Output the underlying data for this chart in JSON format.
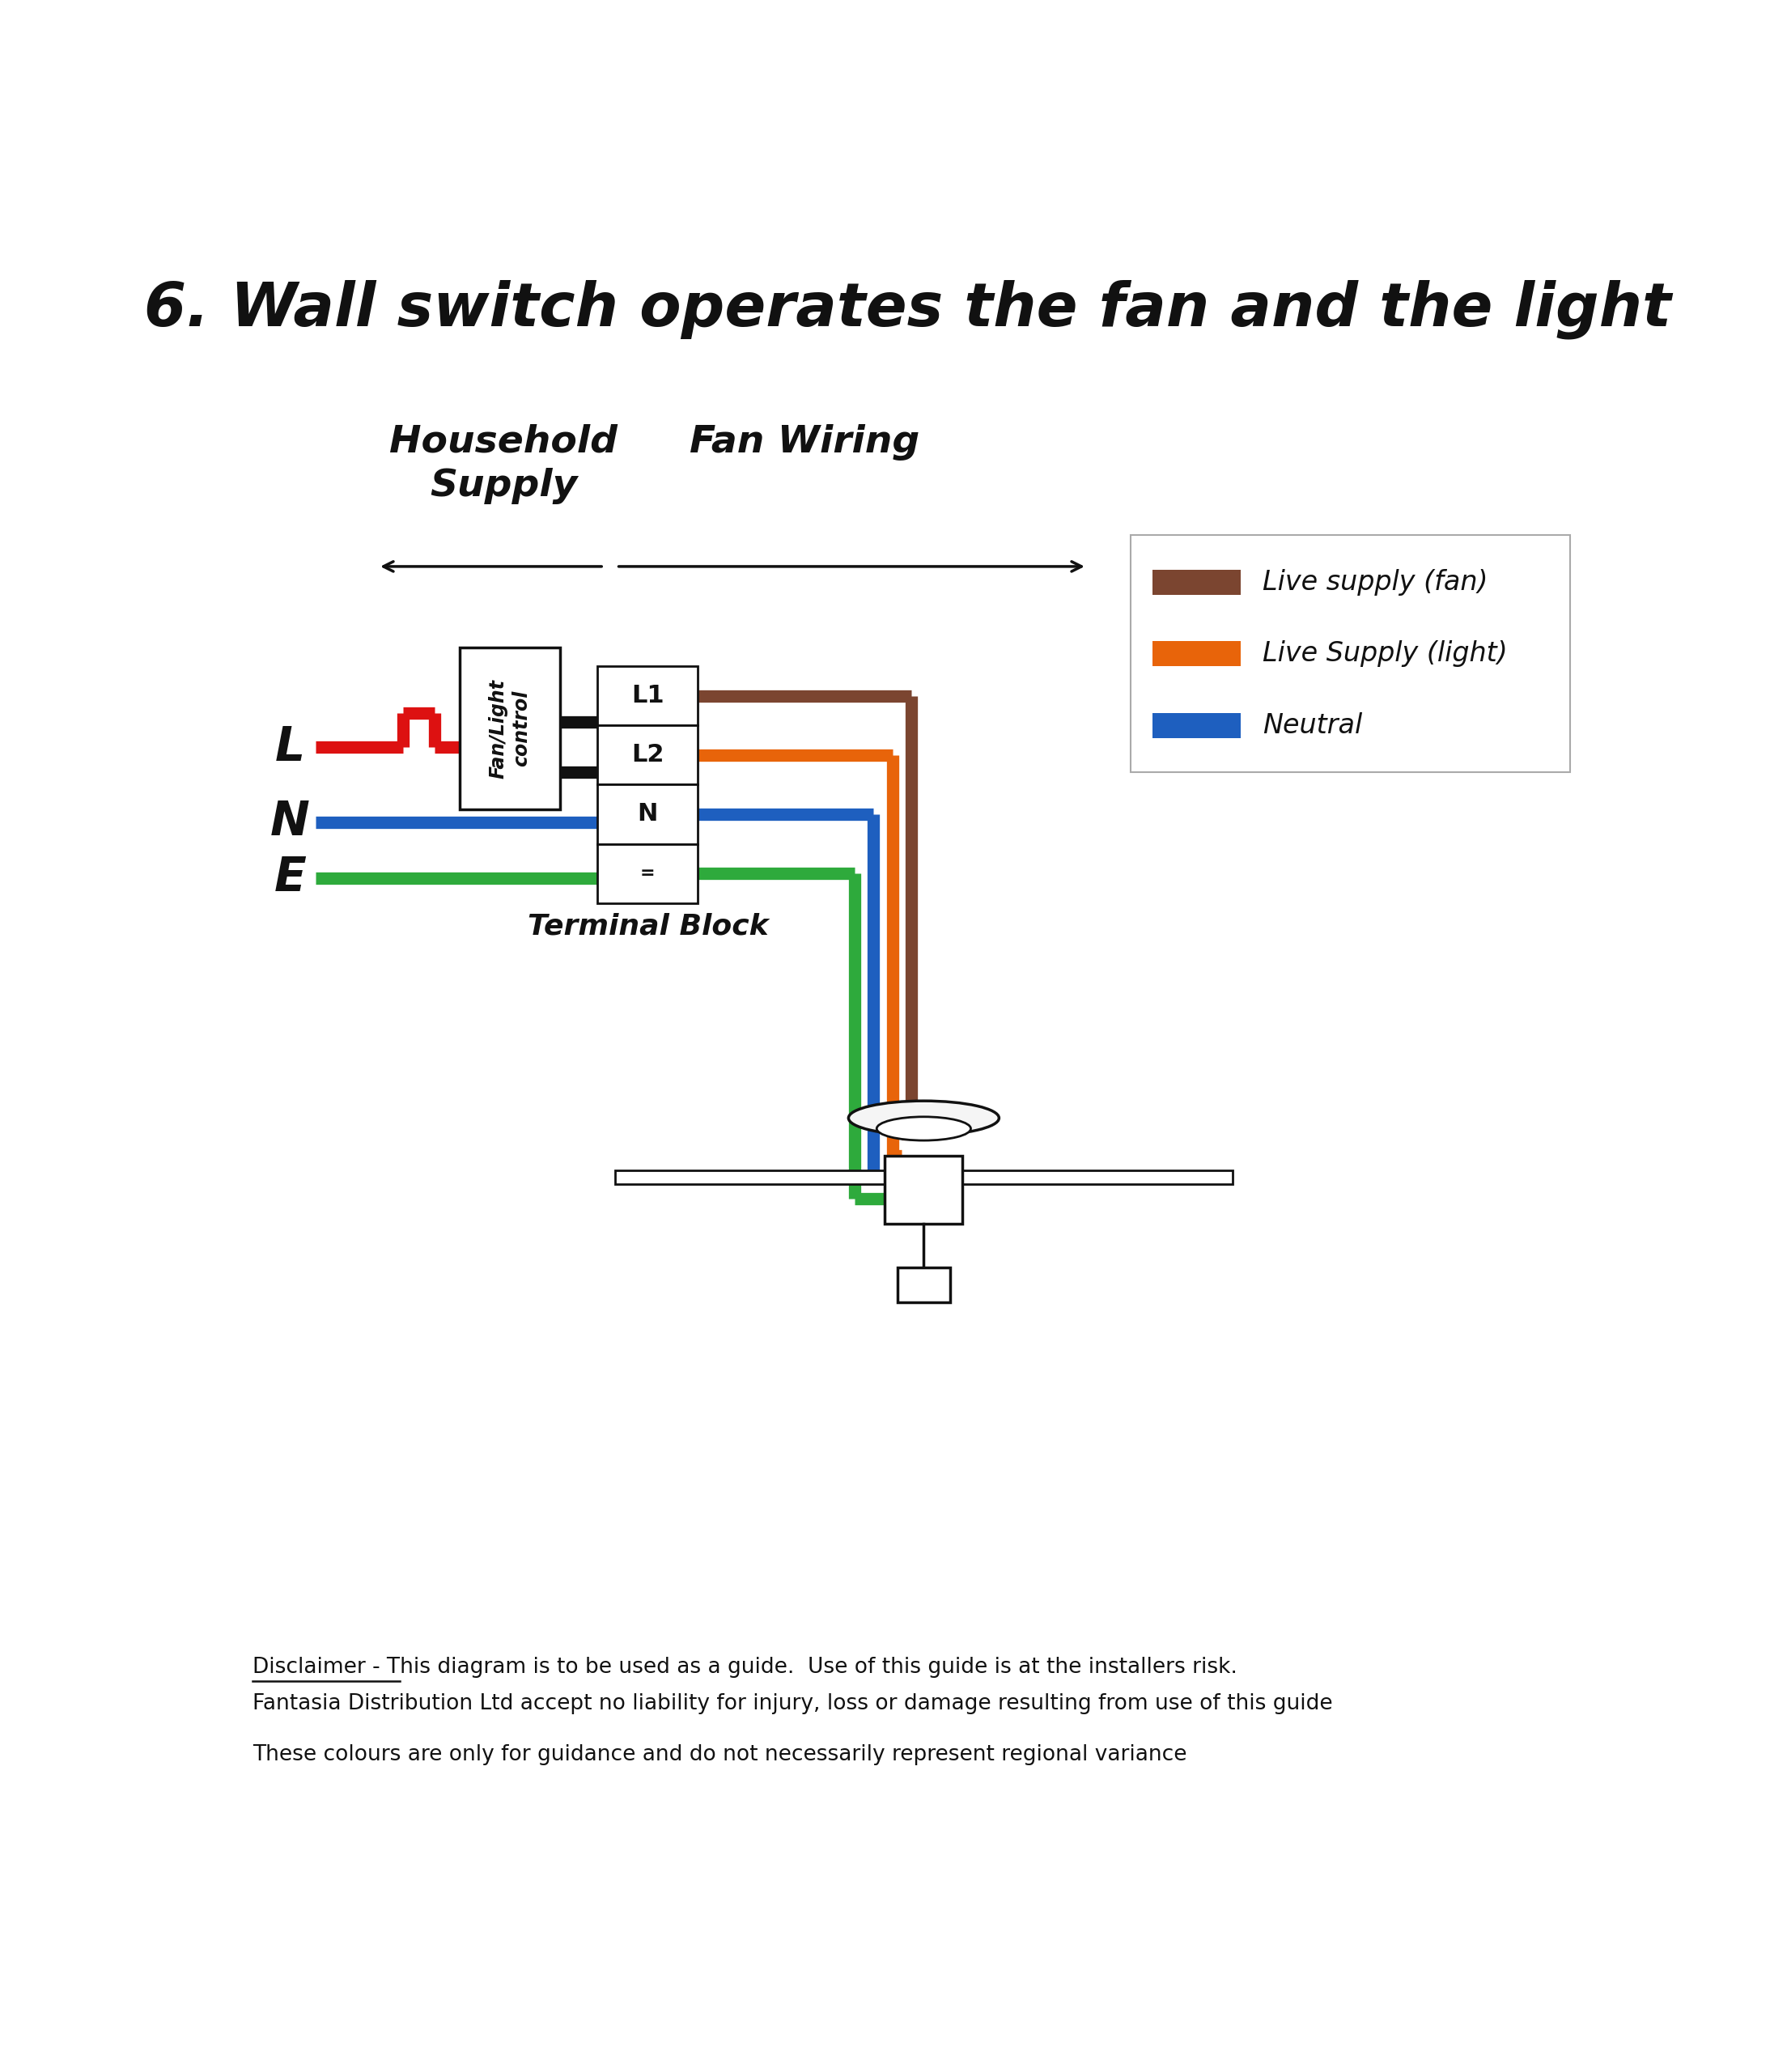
{
  "title": "6. Wall switch operates the fan and the light",
  "title_fontsize": 54,
  "bg_color": "#ffffff",
  "wire_colors": {
    "live_fan": "#7B4530",
    "live_light": "#E8640A",
    "neutral": "#1E5FBF",
    "earth": "#2EAA3C",
    "black": "#111111",
    "red": "#DD1111"
  },
  "wire_lw": 11,
  "labels": {
    "L": "L",
    "N": "N",
    "E": "E",
    "household_line1": "Household",
    "household_line2": "Supply",
    "fan_wiring": "Fan Wiring",
    "terminal": "Terminal Block",
    "fan_control_line1": "Fan/Light",
    "fan_control_line2": "control"
  },
  "legend_items": [
    {
      "label": "Live supply (fan)",
      "color": "#7B4530"
    },
    {
      "label": "Live Supply (light)",
      "color": "#E8640A"
    },
    {
      "label": "Neutral",
      "color": "#1E5FBF"
    }
  ],
  "disclaimer_pre": "Disclaimer",
  "disclaimer_post": " - This diagram is to be used as a guide.  Use of this guide is at the installers risk.",
  "disclaimer_line2": "Fantasia Distribution Ltd accept no liability for injury, loss or damage resulting from use of this guide",
  "disclaimer_line3": "These colours are only for guidance and do not necessarily represent regional variance"
}
